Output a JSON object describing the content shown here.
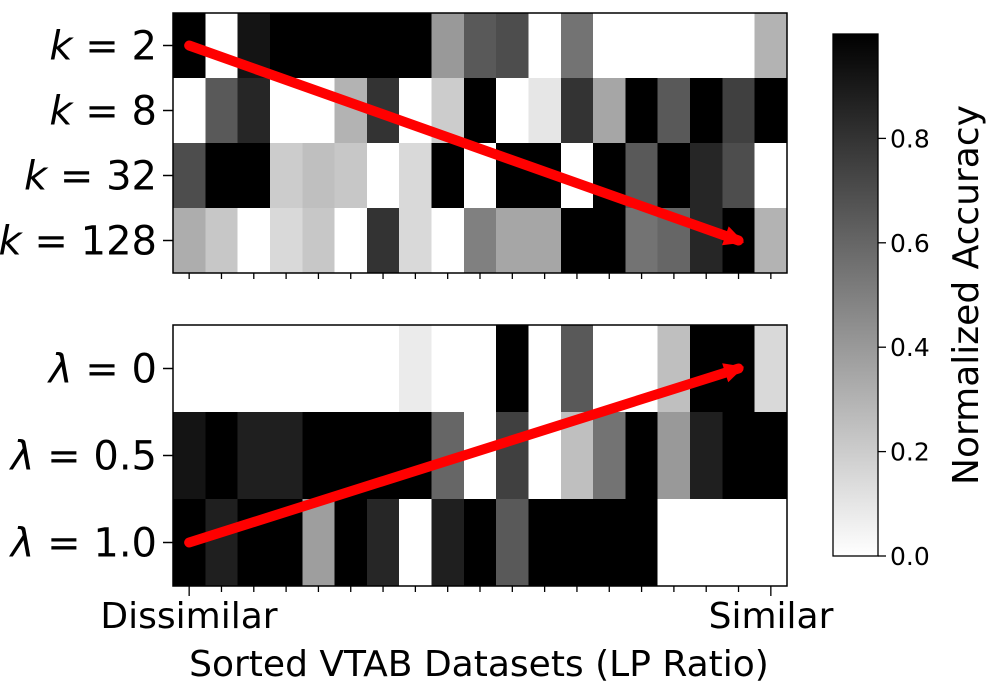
{
  "chart_data": [
    {
      "type": "heatmap",
      "panel": "top",
      "columns": 19,
      "rows": [
        {
          "symbol": "k",
          "value": "2",
          "cells": [
            1.0,
            0.0,
            0.92,
            1.0,
            1.0,
            1.0,
            1.0,
            1.0,
            0.4,
            0.65,
            0.7,
            0.0,
            0.55,
            0.0,
            0.0,
            0.0,
            0.0,
            0.0,
            0.3
          ]
        },
        {
          "symbol": "k",
          "value": "8",
          "cells": [
            0.0,
            0.65,
            0.85,
            0.0,
            0.0,
            0.3,
            0.8,
            0.0,
            0.2,
            1.0,
            0.0,
            0.1,
            0.8,
            0.35,
            1.0,
            0.65,
            1.0,
            0.75,
            1.0
          ]
        },
        {
          "symbol": "k",
          "value": "32",
          "cells": [
            0.7,
            1.0,
            1.0,
            0.2,
            0.25,
            0.22,
            0.0,
            0.15,
            1.0,
            0.0,
            1.0,
            1.0,
            0.0,
            1.0,
            0.65,
            1.0,
            0.85,
            0.7,
            0.0
          ]
        },
        {
          "symbol": "k",
          "value": "128",
          "cells": [
            0.32,
            0.22,
            0.0,
            0.15,
            0.22,
            0.0,
            0.8,
            0.15,
            0.0,
            0.5,
            0.35,
            0.35,
            1.0,
            1.0,
            0.55,
            0.6,
            0.85,
            1.0,
            0.3
          ]
        }
      ],
      "trend": {
        "from_row": 0,
        "to_row": 3,
        "from_col": 0,
        "to_col": 17,
        "color": "#ff0000"
      }
    },
    {
      "type": "heatmap",
      "panel": "bottom",
      "columns": 19,
      "rows": [
        {
          "symbol": "λ",
          "value": "0",
          "cells": [
            0.0,
            0.0,
            0.0,
            0.0,
            0.0,
            0.0,
            0.0,
            0.08,
            0.0,
            0.0,
            1.0,
            0.0,
            0.65,
            0.0,
            0.0,
            0.25,
            1.0,
            1.0,
            0.15
          ]
        },
        {
          "symbol": "λ",
          "value": "0.5",
          "cells": [
            0.92,
            1.0,
            0.88,
            0.88,
            1.0,
            1.0,
            1.0,
            1.0,
            0.6,
            0.0,
            0.75,
            0.0,
            0.25,
            0.55,
            1.0,
            0.4,
            0.88,
            1.0,
            1.0
          ]
        },
        {
          "symbol": "λ",
          "value": "1.0",
          "cells": [
            1.0,
            0.88,
            1.0,
            1.0,
            0.38,
            1.0,
            0.85,
            0.0,
            0.88,
            1.0,
            0.65,
            1.0,
            1.0,
            1.0,
            1.0,
            0.0,
            0.0,
            0.0,
            0.0
          ]
        }
      ],
      "trend": {
        "from_row": 2,
        "to_row": 0,
        "from_col": 0,
        "to_col": 17,
        "color": "#ff0000"
      }
    }
  ],
  "xlabel": "Sorted VTAB Datasets (LP Ratio)",
  "x_left_label": "Dissimilar",
  "x_right_label": "Similar",
  "colorbar": {
    "label": "Normalized Accuracy",
    "ticks": [
      "0.0",
      "0.2",
      "0.4",
      "0.6",
      "0.8"
    ],
    "tick_values": [
      0.0,
      0.2,
      0.4,
      0.6,
      0.8
    ],
    "range": [
      0,
      1
    ],
    "colormap": "Greys"
  }
}
